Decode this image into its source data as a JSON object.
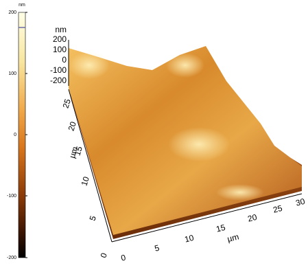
{
  "colorbar": {
    "unit": "nm",
    "ticks": [
      "200",
      "100",
      "0",
      "-100",
      "-200"
    ]
  },
  "z_axis": {
    "unit": "nm",
    "ticks": [
      "200",
      "100",
      "0",
      "-100",
      "-200"
    ]
  },
  "y_axis": {
    "unit": "µm",
    "ticks": [
      "0",
      "5",
      "10",
      "15",
      "20",
      "25"
    ]
  },
  "x_axis": {
    "unit": "µm",
    "ticks": [
      "0",
      "5",
      "10",
      "15",
      "20",
      "25",
      "30"
    ]
  }
}
